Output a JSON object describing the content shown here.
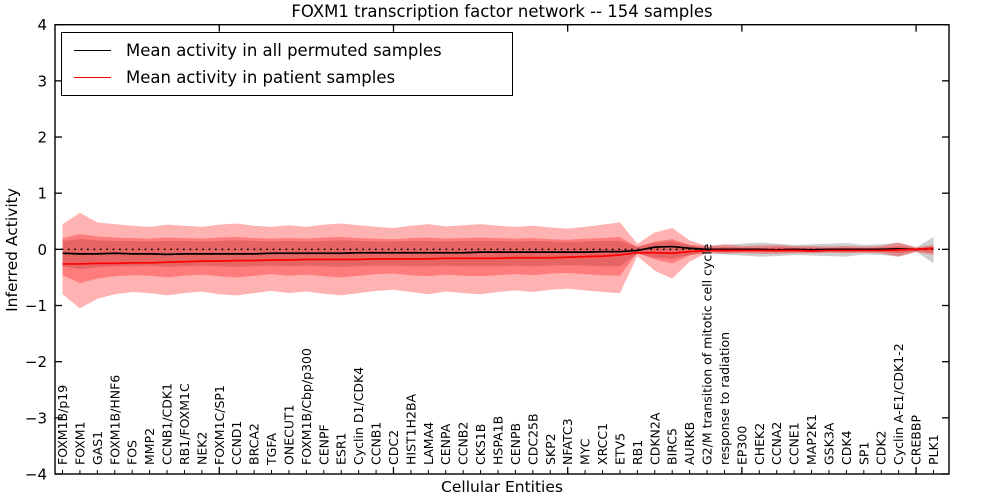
{
  "figure": {
    "background": "#ffffff",
    "axis_color": "#000000"
  },
  "chart_data": {
    "type": "line",
    "title": "FOXM1 transcription factor network -- 154 samples",
    "xlabel": "Cellular Entities",
    "ylabel": "Inferred Activity",
    "ylim": [
      -4,
      4
    ],
    "grid": false,
    "legend_position": "upper left",
    "ytick_values": [
      4,
      3,
      2,
      1,
      0,
      -1,
      -2,
      -3,
      -4
    ],
    "ytick_labels": [
      "4",
      "3",
      "2",
      "1",
      "0",
      "−1",
      "−2",
      "−3",
      "−4"
    ],
    "top_tick_indices": [
      9,
      19,
      29,
      39,
      49
    ],
    "zero_reference_line": 0,
    "categories": [
      "FOXM1B/p19",
      "FOXM1",
      "GAS1",
      "FOXM1B/HNF6",
      "FOS",
      "MMP2",
      "CCNB1/CDK1",
      "RB1/FOXM1C",
      "NEK2",
      "FOXM1C/SP1",
      "CCND1",
      "BRCA2",
      "TGFA",
      "ONECUT1",
      "FOXM1B/Cbp/p300",
      "CENPF",
      "ESR1",
      "Cyclin D1/CDK4",
      "CCNB1",
      "CDC2",
      "HIST1H2BA",
      "LAMA4",
      "CENPA",
      "CCNB2",
      "CKS1B",
      "HSPA1B",
      "CENPB",
      "CDC25B",
      "SKP2",
      "NFATC3",
      "MYC",
      "XRCC1",
      "ETV5",
      "RB1",
      "CDKN2A",
      "BIRC5",
      "AURKB",
      "G2/M transition of mitotic cell cycle",
      "response to radiation",
      "EP300",
      "CHEK2",
      "CCNA2",
      "CCNE1",
      "MAP2K1",
      "GSK3A",
      "CDK4",
      "SP1",
      "CDK2",
      "Cyclin A-E1/CDK1-2",
      "CREBBP",
      "PLK1"
    ],
    "series": [
      {
        "name": "Mean activity in all permuted samples",
        "color": "#000000",
        "values": [
          -0.07,
          -0.08,
          -0.08,
          -0.07,
          -0.08,
          -0.08,
          -0.09,
          -0.08,
          -0.08,
          -0.08,
          -0.08,
          -0.08,
          -0.07,
          -0.07,
          -0.07,
          -0.07,
          -0.07,
          -0.06,
          -0.06,
          -0.06,
          -0.06,
          -0.06,
          -0.06,
          -0.06,
          -0.05,
          -0.05,
          -0.05,
          -0.05,
          -0.05,
          -0.05,
          -0.05,
          -0.04,
          -0.04,
          -0.02,
          0.04,
          0.05,
          0.02,
          0.0,
          0.0,
          0.0,
          0.0,
          -0.01,
          0.0,
          -0.01,
          0.0,
          0.0,
          0.0,
          0.0,
          0.01,
          0.0,
          0.02
        ]
      },
      {
        "name": "Mean activity in patient samples",
        "color": "#ff0000",
        "values": [
          -0.26,
          -0.26,
          -0.25,
          -0.25,
          -0.24,
          -0.24,
          -0.23,
          -0.22,
          -0.21,
          -0.21,
          -0.2,
          -0.2,
          -0.19,
          -0.19,
          -0.18,
          -0.18,
          -0.18,
          -0.18,
          -0.17,
          -0.17,
          -0.17,
          -0.17,
          -0.16,
          -0.16,
          -0.16,
          -0.16,
          -0.15,
          -0.15,
          -0.15,
          -0.14,
          -0.13,
          -0.12,
          -0.1,
          -0.06,
          -0.06,
          -0.07,
          -0.04,
          -0.02,
          -0.02,
          -0.02,
          -0.02,
          -0.02,
          -0.02,
          -0.03,
          -0.02,
          -0.02,
          -0.02,
          -0.02,
          -0.01,
          0.0,
          0.02
        ]
      }
    ],
    "bands": [
      {
        "name": "permuted-samples-range",
        "color": "#7d7d7d",
        "opacity": 0.38,
        "upper": [
          0.15,
          0.18,
          0.16,
          0.15,
          0.15,
          0.14,
          0.15,
          0.15,
          0.14,
          0.15,
          0.16,
          0.15,
          0.14,
          0.15,
          0.14,
          0.15,
          0.16,
          0.15,
          0.14,
          0.14,
          0.15,
          0.15,
          0.14,
          0.15,
          0.15,
          0.15,
          0.14,
          0.15,
          0.14,
          0.13,
          0.14,
          0.15,
          0.15,
          0.05,
          0.12,
          0.14,
          0.08,
          0.06,
          0.08,
          0.1,
          0.12,
          0.1,
          0.08,
          0.09,
          0.1,
          0.11,
          0.08,
          0.09,
          0.12,
          0.03,
          0.22
        ],
        "lower": [
          -0.3,
          -0.35,
          -0.32,
          -0.3,
          -0.3,
          -0.29,
          -0.31,
          -0.3,
          -0.29,
          -0.3,
          -0.31,
          -0.3,
          -0.29,
          -0.3,
          -0.29,
          -0.3,
          -0.31,
          -0.3,
          -0.29,
          -0.29,
          -0.3,
          -0.3,
          -0.29,
          -0.3,
          -0.3,
          -0.3,
          -0.29,
          -0.3,
          -0.29,
          -0.28,
          -0.29,
          -0.3,
          -0.3,
          -0.08,
          -0.15,
          -0.17,
          -0.1,
          -0.07,
          -0.09,
          -0.11,
          -0.13,
          -0.12,
          -0.1,
          -0.11,
          -0.12,
          -0.13,
          -0.09,
          -0.1,
          -0.13,
          -0.04,
          -0.25
        ]
      },
      {
        "name": "patient-samples-outer-range",
        "color": "#ff0000",
        "opacity": 0.3,
        "upper": [
          0.45,
          0.65,
          0.48,
          0.45,
          0.42,
          0.4,
          0.44,
          0.42,
          0.4,
          0.44,
          0.46,
          0.42,
          0.4,
          0.43,
          0.4,
          0.44,
          0.46,
          0.43,
          0.4,
          0.38,
          0.42,
          0.45,
          0.41,
          0.43,
          0.45,
          0.42,
          0.4,
          0.42,
          0.39,
          0.37,
          0.4,
          0.44,
          0.48,
          0.1,
          0.3,
          0.38,
          0.16,
          0.06,
          0.09,
          0.06,
          0.07,
          0.08,
          0.06,
          0.06,
          0.05,
          0.06,
          0.05,
          0.06,
          0.12,
          0.04,
          0.08
        ],
        "lower": [
          -0.8,
          -1.05,
          -0.88,
          -0.8,
          -0.76,
          -0.78,
          -0.82,
          -0.78,
          -0.75,
          -0.8,
          -0.82,
          -0.78,
          -0.74,
          -0.78,
          -0.75,
          -0.79,
          -0.82,
          -0.78,
          -0.74,
          -0.72,
          -0.76,
          -0.8,
          -0.75,
          -0.78,
          -0.8,
          -0.76,
          -0.73,
          -0.76,
          -0.72,
          -0.7,
          -0.73,
          -0.76,
          -0.78,
          -0.12,
          -0.38,
          -0.52,
          -0.22,
          -0.06,
          -0.08,
          -0.07,
          -0.08,
          -0.08,
          -0.07,
          -0.07,
          -0.06,
          -0.07,
          -0.06,
          -0.07,
          -0.13,
          -0.05,
          -0.1
        ]
      },
      {
        "name": "patient-samples-inner-range",
        "color": "#ff0000",
        "opacity": 0.3,
        "upper": [
          0.2,
          0.27,
          0.23,
          0.21,
          0.2,
          0.19,
          0.21,
          0.2,
          0.19,
          0.21,
          0.22,
          0.2,
          0.19,
          0.2,
          0.19,
          0.21,
          0.22,
          0.2,
          0.19,
          0.18,
          0.2,
          0.21,
          0.19,
          0.2,
          0.21,
          0.2,
          0.19,
          0.2,
          0.18,
          0.17,
          0.19,
          0.2,
          0.22,
          0.04,
          0.14,
          0.18,
          0.08,
          0.03,
          0.04,
          0.03,
          0.03,
          0.04,
          0.03,
          0.03,
          0.02,
          0.03,
          0.02,
          0.03,
          0.06,
          0.02,
          0.04
        ],
        "lower": [
          -0.46,
          -0.6,
          -0.52,
          -0.48,
          -0.46,
          -0.47,
          -0.5,
          -0.47,
          -0.45,
          -0.48,
          -0.5,
          -0.47,
          -0.44,
          -0.47,
          -0.45,
          -0.48,
          -0.5,
          -0.47,
          -0.44,
          -0.43,
          -0.46,
          -0.48,
          -0.45,
          -0.47,
          -0.48,
          -0.46,
          -0.44,
          -0.46,
          -0.43,
          -0.42,
          -0.44,
          -0.46,
          -0.47,
          -0.06,
          -0.18,
          -0.25,
          -0.11,
          -0.04,
          -0.05,
          -0.04,
          -0.04,
          -0.05,
          -0.04,
          -0.04,
          -0.03,
          -0.04,
          -0.03,
          -0.04,
          -0.07,
          -0.03,
          -0.06
        ]
      }
    ]
  }
}
